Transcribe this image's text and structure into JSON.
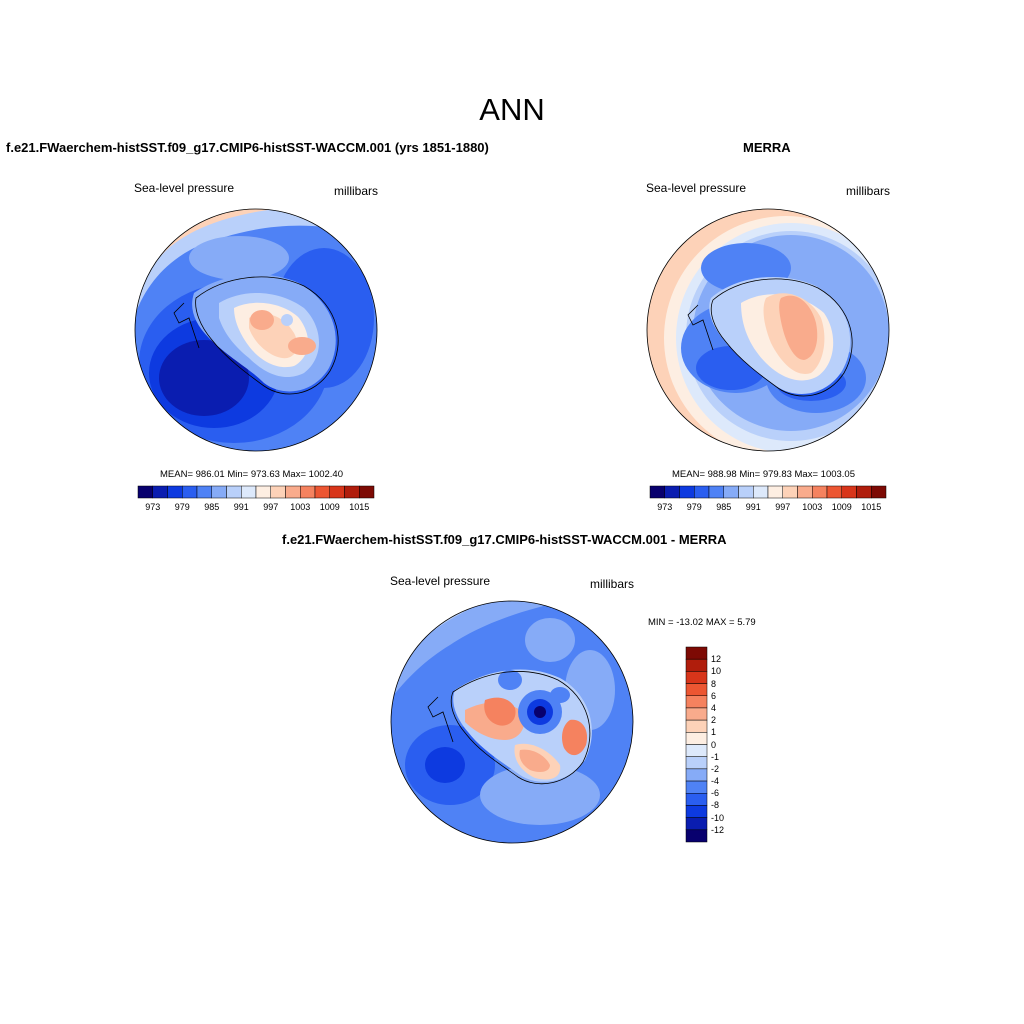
{
  "title": "ANN",
  "panels": [
    {
      "id": "model",
      "title": "f.e21.FWaerchem-histSST.f09_g17.CMIP6-histSST-WACCM.001 (yrs 1851-1880)",
      "left_label": "Sea-level pressure",
      "right_label": "millibars",
      "stats": "MEAN= 986.01   Min= 973.63   Max= 1002.40",
      "colorbar_ticks": [
        "973",
        "979",
        "985",
        "991",
        "997",
        "1003",
        "1009",
        "1015"
      ]
    },
    {
      "id": "obs",
      "title": "MERRA",
      "left_label": "Sea-level pressure",
      "right_label": "millibars",
      "stats": "MEAN= 988.98   Min= 979.83   Max= 1003.05",
      "colorbar_ticks": [
        "973",
        "979",
        "985",
        "991",
        "997",
        "1003",
        "1009",
        "1015"
      ]
    },
    {
      "id": "diff",
      "title": "f.e21.FWaerchem-histSST.f09_g17.CMIP6-histSST-WACCM.001 - MERRA",
      "left_label": "Sea-level pressure",
      "right_label": "millibars",
      "stats": "MIN = -13.02 MAX =   5.79",
      "colorbar_ticks": [
        "12",
        "10",
        "8",
        "6",
        "4",
        "2",
        "1",
        "0",
        "-1",
        "-2",
        "-4",
        "-6",
        "-8",
        "-10",
        "-12"
      ]
    }
  ],
  "colors": {
    "absolute_scale": [
      "#08006e",
      "#0a1db0",
      "#0d3ae0",
      "#2a5ef0",
      "#4f82f5",
      "#86abf7",
      "#b9d0fa",
      "#dde9fb",
      "#fdeee2",
      "#fdd2b8",
      "#f9ab8c",
      "#f5825f",
      "#ec5632",
      "#d8351a",
      "#b01d0c",
      "#7d0a04"
    ],
    "diff_scale": [
      "#7d0a04",
      "#b01d0c",
      "#d8351a",
      "#ec5632",
      "#f5825f",
      "#f9ab8c",
      "#fdd2b8",
      "#fdeee2",
      "#dde9fb",
      "#b9d0fa",
      "#86abf7",
      "#4f82f5",
      "#2a5ef0",
      "#0d3ae0",
      "#0a1db0",
      "#08006e"
    ]
  }
}
